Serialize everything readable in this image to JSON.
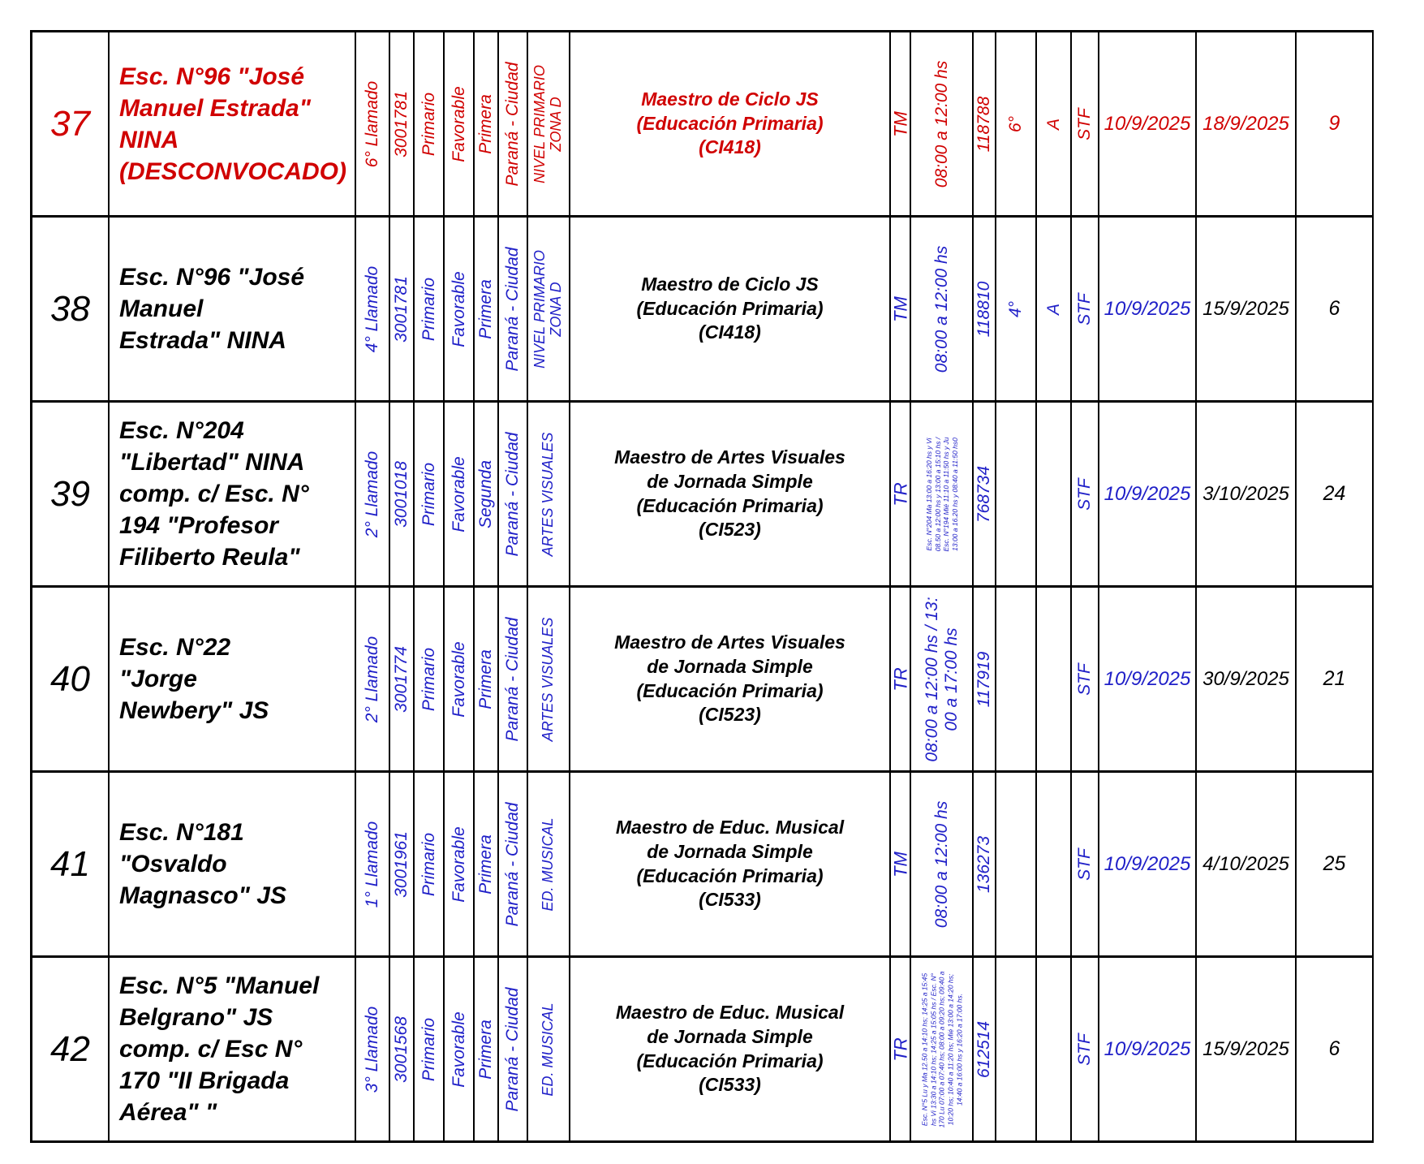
{
  "colors": {
    "red": "#d00000",
    "blue": "#2020c8",
    "border": "#000000",
    "background": "#ffffff"
  },
  "rows": [
    {
      "num": "37",
      "school": "Esc. N°96 \"José\nManuel Estrada\"\nNINA\n(DESCONVOCADO)",
      "llamado": "6° Llamado",
      "cue": "3001781",
      "nivel": "Primario",
      "dictamen": "Favorable",
      "categoria": "Primera",
      "localidad": "Paraná - Ciudad",
      "area": "NIVEL PRIMARIO\nZONA D",
      "cargo": "Maestro de Ciclo JS\n(Educación Primaria)\n(CI418)",
      "turno": "TM",
      "horario": "08:00 a 12:00 hs",
      "codigo": "118788",
      "grado": "6°",
      "division": "A",
      "caracter": "STF",
      "desde": "10/9/2025",
      "hasta": "18/9/2025",
      "dias": "9",
      "red": true
    },
    {
      "num": "38",
      "school": "Esc. N°96 \"José\nManuel\nEstrada\" NINA",
      "llamado": "4° Llamado",
      "cue": "3001781",
      "nivel": "Primario",
      "dictamen": "Favorable",
      "categoria": "Primera",
      "localidad": "Paraná - Ciudad",
      "area": "NIVEL PRIMARIO\nZONA D",
      "cargo": "Maestro de Ciclo JS\n(Educación Primaria)\n(CI418)",
      "turno": "TM",
      "horario": "08:00 a 12:00 hs",
      "codigo": "118810",
      "grado": "4°",
      "division": "A",
      "caracter": "STF",
      "desde": "10/9/2025",
      "hasta": "15/9/2025",
      "dias": "6",
      "red": false
    },
    {
      "num": "39",
      "school": "Esc. N°204\n\"Libertad\" NINA\ncomp. c/ Esc. N°\n194 \"Profesor\nFiliberto Reula\"",
      "llamado": "2° Llamado",
      "cue": "3001018",
      "nivel": "Primario",
      "dictamen": "Favorable",
      "categoria": "Segunda",
      "localidad": "Paraná - Ciudad",
      "area": "ARTES VISUALES",
      "cargo": "Maestro de Artes Visuales\nde Jornada Simple\n(Educación Primaria)\n(CI523)",
      "turno": "TR",
      "horario": "Esc. N°204 Ma 13:00 a 16:20 hs y Vi\n08.50 a 12:00 hs y 13:00 a 15:10 hs /\nEsc. N°194 Mié 11:10 a 11:50 hs y Ju\n13:00 a 16.20 hs y 08:40 a 11:50 hs0",
      "codigo": "768734",
      "grado": "",
      "division": "",
      "caracter": "STF",
      "desde": "10/9/2025",
      "hasta": "3/10/2025",
      "dias": "24",
      "red": false
    },
    {
      "num": "40",
      "school": "Esc. N°22\n\"Jorge\nNewbery\" JS",
      "llamado": "2° Llamado",
      "cue": "3001774",
      "nivel": "Primario",
      "dictamen": "Favorable",
      "categoria": "Primera",
      "localidad": "Paraná - Ciudad",
      "area": "ARTES VISUALES",
      "cargo": "Maestro de Artes Visuales\nde Jornada Simple\n(Educación Primaria)\n(CI523)",
      "turno": "TR",
      "horario": "08:00 a 12:00 hs / 13:\n00 a 17:00 hs",
      "codigo": "117919",
      "grado": "",
      "division": "",
      "caracter": "STF",
      "desde": "10/9/2025",
      "hasta": "30/9/2025",
      "dias": "21",
      "red": false
    },
    {
      "num": "41",
      "school": "Esc. N°181\n\"Osvaldo\nMagnasco\" JS",
      "llamado": "1° Llamado",
      "cue": "3001961",
      "nivel": "Primario",
      "dictamen": "Favorable",
      "categoria": "Primera",
      "localidad": "Paraná - Ciudad",
      "area": "ED. MUSICAL",
      "cargo": "Maestro de Educ. Musical\nde Jornada Simple\n(Educación Primaria)\n(CI533)",
      "turno": "TM",
      "horario": "08:00 a 12:00 hs",
      "codigo": "136273",
      "grado": "",
      "division": "",
      "caracter": "STF",
      "desde": "10/9/2025",
      "hasta": "4/10/2025",
      "dias": "25",
      "red": false
    },
    {
      "num": "42",
      "school": "Esc. N°5 \"Manuel\nBelgrano\" JS\ncomp. c/ Esc N°\n170 \"II Brigada\nAérea\" \"",
      "llamado": "3° Llamado",
      "cue": "3001568",
      "nivel": "Primario",
      "dictamen": "Favorable",
      "categoria": "Primera",
      "localidad": "Paraná - Ciudad",
      "area": "ED. MUSICAL",
      "cargo": "Maestro de Educ. Musical\nde Jornada Simple\n(Educación Primaria)\n(CI533)",
      "turno": "TR",
      "horario": "Esc. N°5 Lu y Ma 12.50 a 14:10 hs; 14:25 a 15:45\nhs Vi 13:30 a 14:10 hs; 14:25 a 15:05 hs / Esc. N°\n170 Lu 07:00 a 07:40 hs; 08:00 a 09:20 hs; 09:40 a\n10:20 hs; 10:40 a 11:20 hs; Mié 13:00 a 14:20 hs;\n14:40 a 16:00 hs y 16:20 a 17:00 hs.",
      "codigo": "612514",
      "grado": "",
      "division": "",
      "caracter": "STF",
      "desde": "10/9/2025",
      "hasta": "15/9/2025",
      "dias": "6",
      "red": false
    }
  ]
}
